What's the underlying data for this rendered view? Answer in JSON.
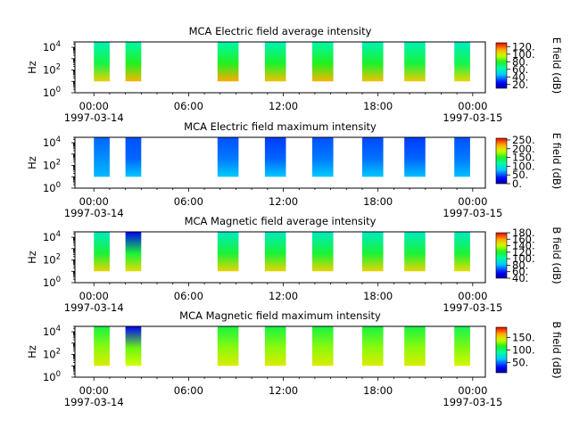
{
  "chart_data": [
    {
      "type": "heatmap",
      "title": "MCA  Electric field average intensity",
      "xlabel": "",
      "ylabel": "Hz",
      "x_tick_labels": [
        "00:00",
        "06:00",
        "12:00",
        "18:00",
        "00:00"
      ],
      "x_date_labels": [
        "1997-03-14",
        "1997-03-15"
      ],
      "y_tick_labels": [
        {
          "base": "10",
          "exp": "0"
        },
        {
          "base": "10",
          "exp": "2"
        },
        {
          "base": "10",
          "exp": "4"
        }
      ],
      "y_scale": "log",
      "y_range_hz": [
        1,
        30000
      ],
      "colorbar": {
        "label": "E field (dB)",
        "ticks": [
          "20.",
          "40.",
          "60.",
          "80.",
          "100.",
          "120."
        ],
        "range": [
          10,
          130
        ],
        "colormap": "rainbow-jet"
      },
      "passes": [
        {
          "start": "00:00",
          "end": "01:00",
          "low_db": 105,
          "mid_db": 75,
          "high_db": 60
        },
        {
          "start": "02:00",
          "end": "03:00",
          "low_db": 110,
          "mid_db": 80,
          "high_db": 62
        },
        {
          "start": "07:50",
          "end": "09:10",
          "low_db": 112,
          "mid_db": 80,
          "high_db": 62
        },
        {
          "start": "10:50",
          "end": "12:10",
          "low_db": 108,
          "mid_db": 78,
          "high_db": 60
        },
        {
          "start": "13:50",
          "end": "15:10",
          "low_db": 110,
          "mid_db": 80,
          "high_db": 62
        },
        {
          "start": "17:00",
          "end": "18:20",
          "low_db": 108,
          "mid_db": 78,
          "high_db": 60
        },
        {
          "start": "19:40",
          "end": "21:00",
          "low_db": 106,
          "mid_db": 76,
          "high_db": 60
        },
        {
          "start": "22:50",
          "end": "23:50",
          "low_db": 104,
          "mid_db": 74,
          "high_db": 58
        }
      ]
    },
    {
      "type": "heatmap",
      "title": "MCA  Electric field maximum intensity",
      "xlabel": "",
      "ylabel": "Hz",
      "x_tick_labels": [
        "00:00",
        "06:00",
        "12:00",
        "18:00",
        "00:00"
      ],
      "x_date_labels": [
        "1997-03-14",
        "1997-03-15"
      ],
      "y_tick_labels": [
        {
          "base": "10",
          "exp": "0"
        },
        {
          "base": "10",
          "exp": "2"
        },
        {
          "base": "10",
          "exp": "4"
        }
      ],
      "y_scale": "log",
      "y_range_hz": [
        1,
        30000
      ],
      "colorbar": {
        "label": "E field (dB)",
        "ticks": [
          "0.",
          "50.",
          "100.",
          "150.",
          "200.",
          "250."
        ],
        "range": [
          0,
          260
        ],
        "colormap": "rainbow-jet"
      },
      "passes": [
        {
          "start": "00:00",
          "end": "01:00",
          "low_db": 75,
          "mid_db": 65,
          "high_db": 55
        },
        {
          "start": "02:00",
          "end": "03:00",
          "low_db": 78,
          "mid_db": 55,
          "high_db": 50
        },
        {
          "start": "07:50",
          "end": "09:10",
          "low_db": 80,
          "mid_db": 60,
          "high_db": 50
        },
        {
          "start": "10:50",
          "end": "12:10",
          "low_db": 78,
          "mid_db": 55,
          "high_db": 45
        },
        {
          "start": "13:50",
          "end": "15:10",
          "low_db": 80,
          "mid_db": 60,
          "high_db": 50
        },
        {
          "start": "17:00",
          "end": "18:20",
          "low_db": 78,
          "mid_db": 58,
          "high_db": 48
        },
        {
          "start": "19:40",
          "end": "21:00",
          "low_db": 76,
          "mid_db": 55,
          "high_db": 45
        },
        {
          "start": "22:50",
          "end": "23:50",
          "low_db": 76,
          "mid_db": 60,
          "high_db": 50
        }
      ]
    },
    {
      "type": "heatmap",
      "title": "MCA  Magnetic field average intensity",
      "xlabel": "",
      "ylabel": "Hz",
      "x_tick_labels": [
        "00:00",
        "06:00",
        "12:00",
        "18:00",
        "00:00"
      ],
      "x_date_labels": [
        "1997-03-14",
        "1997-03-15"
      ],
      "y_tick_labels": [
        {
          "base": "10",
          "exp": "0"
        },
        {
          "base": "10",
          "exp": "2"
        },
        {
          "base": "10",
          "exp": "4"
        }
      ],
      "y_scale": "log",
      "y_range_hz": [
        1,
        30000
      ],
      "colorbar": {
        "label": "B field (dB)",
        "ticks": [
          "40.",
          "60.",
          "80.",
          "100.",
          "120.",
          "140.",
          "160.",
          "180."
        ],
        "range": [
          40,
          180
        ],
        "colormap": "rainbow-jet"
      },
      "passes": [
        {
          "start": "00:00",
          "end": "01:00",
          "low_db": 150,
          "mid_db": 118,
          "high_db": 95
        },
        {
          "start": "02:00",
          "end": "03:00",
          "low_db": 148,
          "mid_db": 118,
          "high_db": 55
        },
        {
          "start": "07:50",
          "end": "09:10",
          "low_db": 150,
          "mid_db": 118,
          "high_db": 95
        },
        {
          "start": "10:50",
          "end": "12:10",
          "low_db": 150,
          "mid_db": 118,
          "high_db": 95
        },
        {
          "start": "13:50",
          "end": "15:10",
          "low_db": 150,
          "mid_db": 118,
          "high_db": 95
        },
        {
          "start": "17:00",
          "end": "18:20",
          "low_db": 150,
          "mid_db": 118,
          "high_db": 95
        },
        {
          "start": "19:40",
          "end": "21:00",
          "low_db": 150,
          "mid_db": 118,
          "high_db": 95
        },
        {
          "start": "22:50",
          "end": "23:50",
          "low_db": 148,
          "mid_db": 118,
          "high_db": 95
        }
      ]
    },
    {
      "type": "heatmap",
      "title": "MCA  Magnetic field maximum intensity",
      "xlabel": "",
      "ylabel": "Hz",
      "x_tick_labels": [
        "00:00",
        "06:00",
        "12:00",
        "18:00",
        "00:00"
      ],
      "x_date_labels": [
        "1997-03-14",
        "1997-03-15"
      ],
      "y_tick_labels": [
        {
          "base": "10",
          "exp": "0"
        },
        {
          "base": "10",
          "exp": "2"
        },
        {
          "base": "10",
          "exp": "4"
        }
      ],
      "y_scale": "log",
      "y_range_hz": [
        1,
        30000
      ],
      "colorbar": {
        "label": "B field (dB)",
        "ticks": [
          "50.",
          "100.",
          "150."
        ],
        "range": [
          10,
          190
        ],
        "colormap": "rainbow-jet"
      },
      "passes": [
        {
          "start": "00:00",
          "end": "01:00",
          "low_db": 145,
          "mid_db": 130,
          "high_db": 108
        },
        {
          "start": "02:00",
          "end": "03:00",
          "low_db": 140,
          "mid_db": 125,
          "high_db": 30
        },
        {
          "start": "07:50",
          "end": "09:10",
          "low_db": 145,
          "mid_db": 130,
          "high_db": 108
        },
        {
          "start": "10:50",
          "end": "12:10",
          "low_db": 145,
          "mid_db": 130,
          "high_db": 108
        },
        {
          "start": "13:50",
          "end": "15:10",
          "low_db": 145,
          "mid_db": 130,
          "high_db": 108
        },
        {
          "start": "17:00",
          "end": "18:20",
          "low_db": 145,
          "mid_db": 130,
          "high_db": 108
        },
        {
          "start": "19:40",
          "end": "21:00",
          "low_db": 145,
          "mid_db": 130,
          "high_db": 108
        },
        {
          "start": "22:50",
          "end": "23:50",
          "low_db": 142,
          "mid_db": 128,
          "high_db": 105
        }
      ]
    }
  ]
}
